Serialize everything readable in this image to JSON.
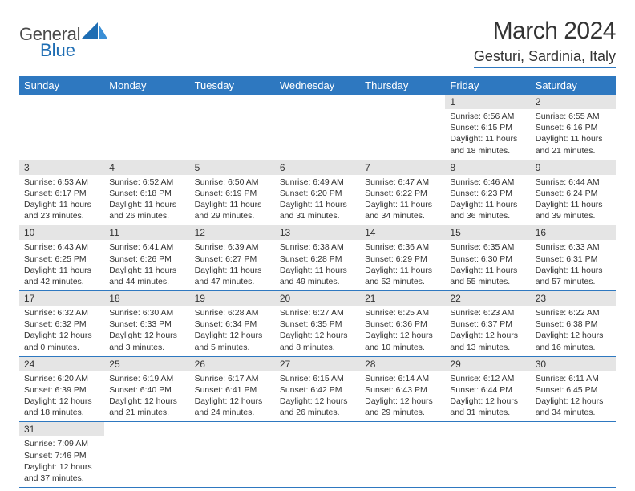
{
  "branding": {
    "word1": "General",
    "word2": "Blue",
    "word1_color": "#4a4a4a",
    "word2_color": "#1e6db3"
  },
  "header": {
    "month_title": "March 2024",
    "location": "Gesturi, Sardinia, Italy"
  },
  "colors": {
    "header_bg": "#2e78c0",
    "header_fg": "#ffffff",
    "daynum_bg": "#e5e5e5",
    "row_divider": "#2e78c0",
    "page_bg": "#ffffff",
    "text": "#333333"
  },
  "layout": {
    "columns": 7,
    "body_fontsize_pt": 8,
    "header_fontsize_pt": 10
  },
  "weekdays": [
    "Sunday",
    "Monday",
    "Tuesday",
    "Wednesday",
    "Thursday",
    "Friday",
    "Saturday"
  ],
  "weeks": [
    {
      "nums": [
        "",
        "",
        "",
        "",
        "",
        "1",
        "2"
      ],
      "cells": [
        "",
        "",
        "",
        "",
        "",
        "Sunrise: 6:56 AM\nSunset: 6:15 PM\nDaylight: 11 hours and 18 minutes.",
        "Sunrise: 6:55 AM\nSunset: 6:16 PM\nDaylight: 11 hours and 21 minutes."
      ]
    },
    {
      "nums": [
        "3",
        "4",
        "5",
        "6",
        "7",
        "8",
        "9"
      ],
      "cells": [
        "Sunrise: 6:53 AM\nSunset: 6:17 PM\nDaylight: 11 hours and 23 minutes.",
        "Sunrise: 6:52 AM\nSunset: 6:18 PM\nDaylight: 11 hours and 26 minutes.",
        "Sunrise: 6:50 AM\nSunset: 6:19 PM\nDaylight: 11 hours and 29 minutes.",
        "Sunrise: 6:49 AM\nSunset: 6:20 PM\nDaylight: 11 hours and 31 minutes.",
        "Sunrise: 6:47 AM\nSunset: 6:22 PM\nDaylight: 11 hours and 34 minutes.",
        "Sunrise: 6:46 AM\nSunset: 6:23 PM\nDaylight: 11 hours and 36 minutes.",
        "Sunrise: 6:44 AM\nSunset: 6:24 PM\nDaylight: 11 hours and 39 minutes."
      ]
    },
    {
      "nums": [
        "10",
        "11",
        "12",
        "13",
        "14",
        "15",
        "16"
      ],
      "cells": [
        "Sunrise: 6:43 AM\nSunset: 6:25 PM\nDaylight: 11 hours and 42 minutes.",
        "Sunrise: 6:41 AM\nSunset: 6:26 PM\nDaylight: 11 hours and 44 minutes.",
        "Sunrise: 6:39 AM\nSunset: 6:27 PM\nDaylight: 11 hours and 47 minutes.",
        "Sunrise: 6:38 AM\nSunset: 6:28 PM\nDaylight: 11 hours and 49 minutes.",
        "Sunrise: 6:36 AM\nSunset: 6:29 PM\nDaylight: 11 hours and 52 minutes.",
        "Sunrise: 6:35 AM\nSunset: 6:30 PM\nDaylight: 11 hours and 55 minutes.",
        "Sunrise: 6:33 AM\nSunset: 6:31 PM\nDaylight: 11 hours and 57 minutes."
      ]
    },
    {
      "nums": [
        "17",
        "18",
        "19",
        "20",
        "21",
        "22",
        "23"
      ],
      "cells": [
        "Sunrise: 6:32 AM\nSunset: 6:32 PM\nDaylight: 12 hours and 0 minutes.",
        "Sunrise: 6:30 AM\nSunset: 6:33 PM\nDaylight: 12 hours and 3 minutes.",
        "Sunrise: 6:28 AM\nSunset: 6:34 PM\nDaylight: 12 hours and 5 minutes.",
        "Sunrise: 6:27 AM\nSunset: 6:35 PM\nDaylight: 12 hours and 8 minutes.",
        "Sunrise: 6:25 AM\nSunset: 6:36 PM\nDaylight: 12 hours and 10 minutes.",
        "Sunrise: 6:23 AM\nSunset: 6:37 PM\nDaylight: 12 hours and 13 minutes.",
        "Sunrise: 6:22 AM\nSunset: 6:38 PM\nDaylight: 12 hours and 16 minutes."
      ]
    },
    {
      "nums": [
        "24",
        "25",
        "26",
        "27",
        "28",
        "29",
        "30"
      ],
      "cells": [
        "Sunrise: 6:20 AM\nSunset: 6:39 PM\nDaylight: 12 hours and 18 minutes.",
        "Sunrise: 6:19 AM\nSunset: 6:40 PM\nDaylight: 12 hours and 21 minutes.",
        "Sunrise: 6:17 AM\nSunset: 6:41 PM\nDaylight: 12 hours and 24 minutes.",
        "Sunrise: 6:15 AM\nSunset: 6:42 PM\nDaylight: 12 hours and 26 minutes.",
        "Sunrise: 6:14 AM\nSunset: 6:43 PM\nDaylight: 12 hours and 29 minutes.",
        "Sunrise: 6:12 AM\nSunset: 6:44 PM\nDaylight: 12 hours and 31 minutes.",
        "Sunrise: 6:11 AM\nSunset: 6:45 PM\nDaylight: 12 hours and 34 minutes."
      ]
    },
    {
      "nums": [
        "31",
        "",
        "",
        "",
        "",
        "",
        ""
      ],
      "cells": [
        "Sunrise: 7:09 AM\nSunset: 7:46 PM\nDaylight: 12 hours and 37 minutes.",
        "",
        "",
        "",
        "",
        "",
        ""
      ]
    }
  ]
}
